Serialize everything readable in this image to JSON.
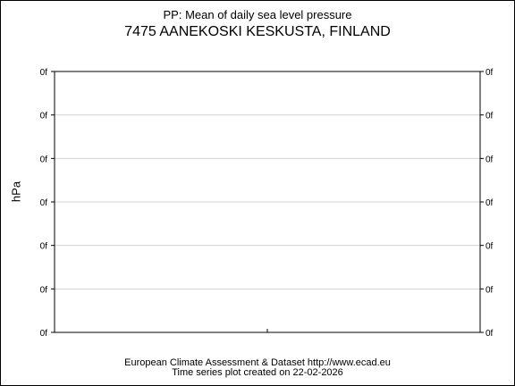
{
  "chart_data": {
    "type": "line",
    "title": "PP: Mean of daily sea level pressure",
    "subtitle": "7475 AANEKOSKI KESKUSTA, FINLAND",
    "ylabel": "hPa",
    "xlabel": "",
    "y_tick_labels": [
      "0f",
      "0f",
      "0f",
      "0f",
      "0f",
      "0f",
      "0f"
    ],
    "series": [],
    "grid": true,
    "colors": {
      "frame": "#000000",
      "grid": "#d3d3d3",
      "background": "#ffffff"
    }
  },
  "footer": {
    "line1": "European Climate Assessment & Dataset  http://www.ecad.eu",
    "line2": "Time series plot created on 22-02-2026"
  }
}
